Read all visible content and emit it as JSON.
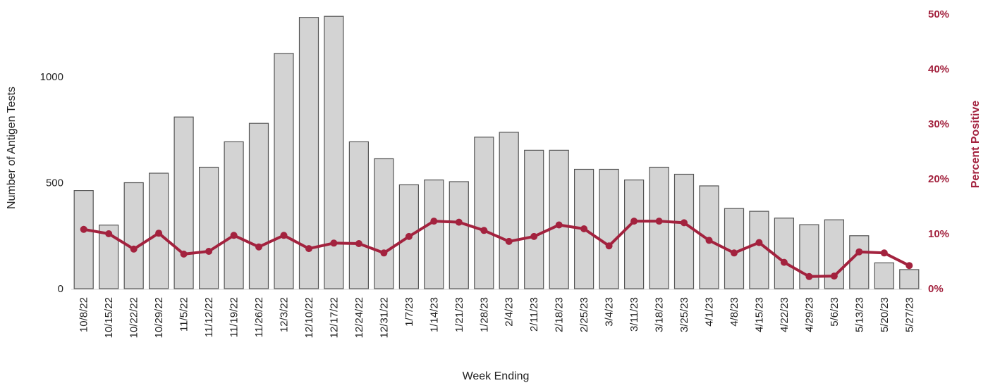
{
  "chart_data": {
    "type": "bar+line",
    "xlabel": "Week Ending",
    "ylabel_left": "Number of Antigen Tests",
    "ylabel_right": "Percent Positive",
    "ylim_left": [
      0,
      1300
    ],
    "ylim_right": [
      0,
      50
    ],
    "yticks_left": [
      {
        "value": 0,
        "label": "0"
      },
      {
        "value": 500,
        "label": "500"
      },
      {
        "value": 1000,
        "label": "1000"
      }
    ],
    "yticks_right": [
      {
        "value": 0,
        "label": "0%"
      },
      {
        "value": 10,
        "label": "10%"
      },
      {
        "value": 20,
        "label": "20%"
      },
      {
        "value": 30,
        "label": "30%"
      },
      {
        "value": 40,
        "label": "40%"
      },
      {
        "value": 50,
        "label": "50%"
      }
    ],
    "categories": [
      "10/8/22",
      "10/15/22",
      "10/22/22",
      "10/29/22",
      "11/5/22",
      "11/12/22",
      "11/19/22",
      "11/26/22",
      "12/3/22",
      "12/10/22",
      "12/17/22",
      "12/24/22",
      "12/31/22",
      "1/7/23",
      "1/14/23",
      "1/21/23",
      "1/28/23",
      "2/4/23",
      "2/11/23",
      "2/18/23",
      "2/25/23",
      "3/4/23",
      "3/11/23",
      "3/18/23",
      "3/25/23",
      "4/1/23",
      "4/8/23",
      "4/15/23",
      "4/22/23",
      "4/29/23",
      "5/6/23",
      "5/13/23",
      "5/20/23",
      "5/27/23"
    ],
    "series": [
      {
        "kind": "bar",
        "axis": "left",
        "color": "#d3d3d3",
        "values": [
          463,
          300,
          500,
          545,
          810,
          573,
          693,
          780,
          1110,
          1280,
          1285,
          693,
          613,
          490,
          513,
          505,
          715,
          738,
          653,
          653,
          563,
          563,
          513,
          573,
          540,
          485,
          378,
          365,
          333,
          302,
          325,
          250,
          122,
          90
        ]
      },
      {
        "kind": "line",
        "axis": "right",
        "color": "#a3223e",
        "values": [
          10.8,
          10.0,
          7.2,
          10.1,
          6.3,
          6.8,
          9.7,
          7.6,
          9.7,
          7.3,
          8.3,
          8.2,
          6.5,
          9.5,
          12.3,
          12.1,
          10.6,
          8.6,
          9.5,
          11.6,
          10.9,
          7.8,
          12.3,
          12.3,
          12.0,
          8.8,
          6.5,
          8.4,
          4.8,
          2.2,
          2.3,
          6.7,
          6.5,
          4.2
        ]
      }
    ]
  }
}
